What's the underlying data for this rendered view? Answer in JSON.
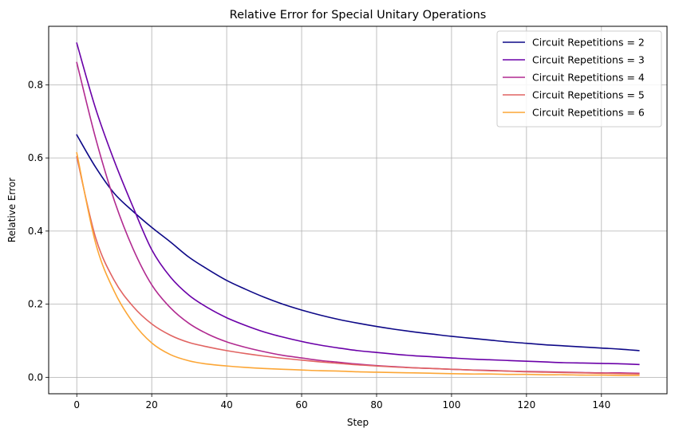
{
  "chart_data": {
    "type": "line",
    "title": "Relative Error for Special Unitary Operations",
    "xlabel": "Step",
    "ylabel": "Relative Error",
    "xlim": [
      -7.5,
      157.5
    ],
    "ylim": [
      -0.045,
      0.96
    ],
    "xticks": [
      0,
      20,
      40,
      60,
      80,
      100,
      120,
      140
    ],
    "yticks": [
      0.0,
      0.2,
      0.4,
      0.6,
      0.8
    ],
    "ytick_labels": [
      "0.0",
      "0.2",
      "0.4",
      "0.6",
      "0.8"
    ],
    "grid": true,
    "legend_position": "top-right",
    "x": [
      0,
      5,
      10,
      15,
      20,
      25,
      30,
      35,
      40,
      45,
      50,
      55,
      60,
      65,
      70,
      75,
      80,
      85,
      90,
      95,
      100,
      105,
      110,
      115,
      120,
      125,
      130,
      135,
      140,
      145,
      150
    ],
    "series": [
      {
        "name": "Circuit Repetitions = 2",
        "color": "#0d0887",
        "values": [
          0.663,
          0.575,
          0.503,
          0.454,
          0.41,
          0.37,
          0.328,
          0.295,
          0.265,
          0.241,
          0.219,
          0.2,
          0.184,
          0.17,
          0.158,
          0.148,
          0.139,
          0.131,
          0.124,
          0.118,
          0.112,
          0.107,
          0.102,
          0.097,
          0.093,
          0.089,
          0.086,
          0.083,
          0.08,
          0.077,
          0.073
        ]
      },
      {
        "name": "Circuit Repetitions = 3",
        "color": "#6a00a8",
        "values": [
          0.914,
          0.736,
          0.592,
          0.466,
          0.349,
          0.274,
          0.224,
          0.19,
          0.163,
          0.142,
          0.124,
          0.11,
          0.098,
          0.088,
          0.08,
          0.073,
          0.068,
          0.063,
          0.059,
          0.056,
          0.053,
          0.05,
          0.048,
          0.046,
          0.044,
          0.042,
          0.04,
          0.039,
          0.038,
          0.037,
          0.035
        ]
      },
      {
        "name": "Circuit Repetitions = 4",
        "color": "#b12a90",
        "values": [
          0.861,
          0.655,
          0.484,
          0.352,
          0.253,
          0.19,
          0.147,
          0.118,
          0.097,
          0.082,
          0.07,
          0.06,
          0.053,
          0.046,
          0.041,
          0.036,
          0.032,
          0.029,
          0.026,
          0.024,
          0.022,
          0.02,
          0.019,
          0.017,
          0.016,
          0.015,
          0.014,
          0.013,
          0.012,
          0.012,
          0.011
        ]
      },
      {
        "name": "Circuit Repetitions = 5",
        "color": "#e16462",
        "values": [
          0.603,
          0.383,
          0.265,
          0.194,
          0.146,
          0.115,
          0.095,
          0.083,
          0.073,
          0.065,
          0.058,
          0.052,
          0.047,
          0.042,
          0.038,
          0.034,
          0.031,
          0.028,
          0.026,
          0.024,
          0.022,
          0.02,
          0.018,
          0.017,
          0.015,
          0.014,
          0.013,
          0.012,
          0.011,
          0.01,
          0.009
        ]
      },
      {
        "name": "Circuit Repetitions = 6",
        "color": "#fca636",
        "values": [
          0.614,
          0.368,
          0.235,
          0.15,
          0.094,
          0.062,
          0.045,
          0.036,
          0.031,
          0.027,
          0.024,
          0.022,
          0.02,
          0.018,
          0.017,
          0.015,
          0.014,
          0.013,
          0.012,
          0.011,
          0.01,
          0.009,
          0.009,
          0.008,
          0.008,
          0.007,
          0.007,
          0.006,
          0.006,
          0.005,
          0.005
        ]
      }
    ]
  }
}
